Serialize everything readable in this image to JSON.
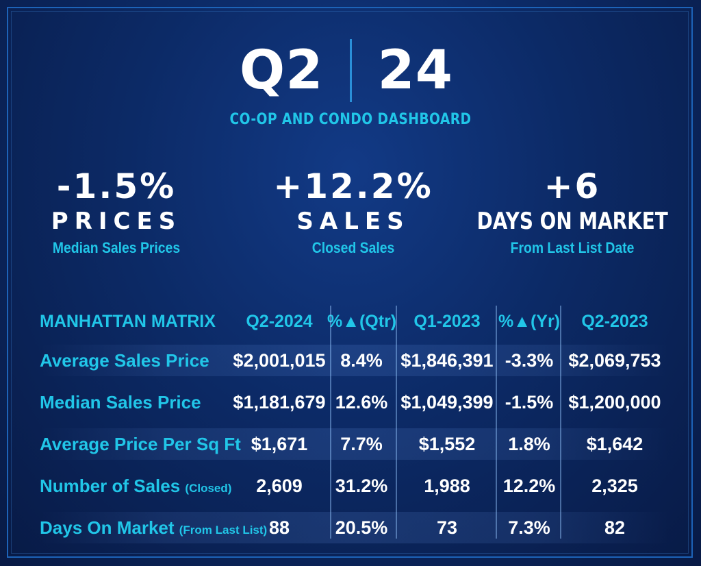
{
  "header": {
    "quarter": "Q2",
    "year": "24",
    "subtitle": "CO-OP AND CONDO DASHBOARD"
  },
  "stats": [
    {
      "value": "-1.5%",
      "label": "PRICES",
      "description": "Median Sales Prices"
    },
    {
      "value": "+12.2%",
      "label": "SALES",
      "description": "Closed Sales"
    },
    {
      "value": "+6",
      "label": "DAYS ON MARKET",
      "description": "From Last List Date"
    }
  ],
  "chart_data": {
    "type": "table",
    "title": "MANHATTAN MATRIX",
    "columns": [
      "Q2-2024",
      "%▲(Qtr)",
      "Q1-2023",
      "%▲(Yr)",
      "Q2-2023"
    ],
    "rows": [
      {
        "label": "Average Sales Price",
        "note": "",
        "values": [
          "$2,001,015",
          "8.4%",
          "$1,846,391",
          "-3.3%",
          "$2,069,753"
        ]
      },
      {
        "label": "Median Sales Price",
        "note": "",
        "values": [
          "$1,181,679",
          "12.6%",
          "$1,049,399",
          "-1.5%",
          "$1,200,000"
        ]
      },
      {
        "label": "Average Price Per Sq Ft",
        "note": "",
        "values": [
          "$1,671",
          "7.7%",
          "$1,552",
          "1.8%",
          "$1,642"
        ]
      },
      {
        "label": "Number of Sales",
        "note": "(Closed)",
        "values": [
          "2,609",
          "31.2%",
          "1,988",
          "12.2%",
          "2,325"
        ]
      },
      {
        "label": "Days On Market",
        "note": "(From Last List)",
        "values": [
          "88",
          "20.5%",
          "73",
          "7.3%",
          "82"
        ]
      }
    ]
  },
  "colors": {
    "background": "#0c2a66",
    "accent": "#21c6e8",
    "text": "#ffffff"
  }
}
